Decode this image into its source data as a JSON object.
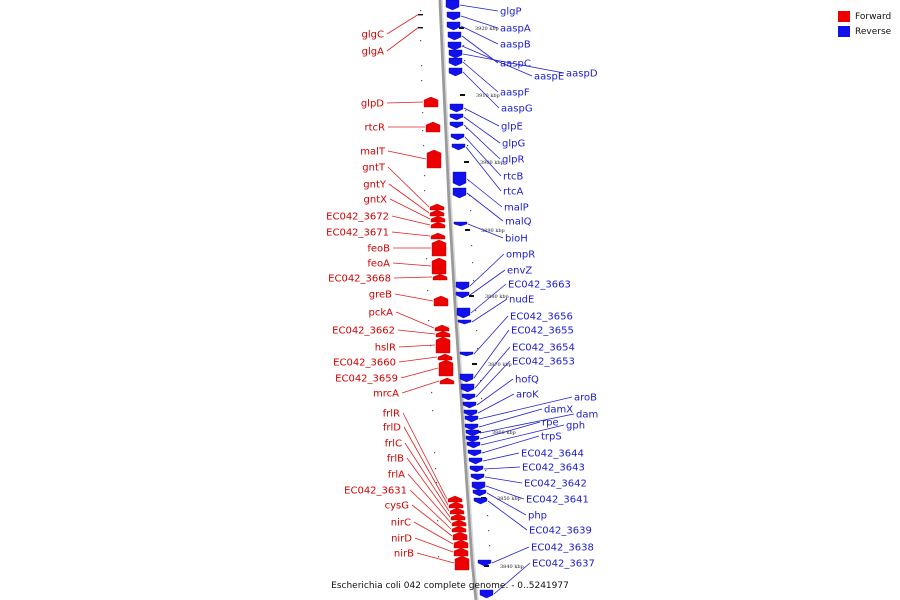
{
  "colors": {
    "forward": "#ee0000",
    "reverse": "#1111ee",
    "backbone": "#888888"
  },
  "legend": {
    "forward": "Forward",
    "reverse": "Reverse"
  },
  "caption": "Escherichia coli 042 complete genome. - 0..5241977",
  "ticks": [
    "3920 kbp",
    "3910 kbp",
    "3900 kbp",
    "3890 kbp",
    "3880 kbp",
    "3870 kbp",
    "3860 kbp",
    "3850 kbp",
    "3840 kbp"
  ],
  "forward_genes": [
    "glgC",
    "glgA",
    "glpD",
    "rtcR",
    "malT",
    "gntT",
    "gntY",
    "gntX",
    "EC042_3672",
    "EC042_3671",
    "feoB",
    "feoA",
    "EC042_3668",
    "greB",
    "pckA",
    "EC042_3662",
    "hslR",
    "EC042_3660",
    "EC042_3659",
    "mrcA",
    "frlR",
    "frlD",
    "frlC",
    "frlB",
    "frlA",
    "EC042_3631",
    "cysG",
    "nirC",
    "nirD",
    "nirB"
  ],
  "reverse_genes": [
    "glgP",
    "aaspA",
    "aaspB",
    "aaspC",
    "aaspE",
    "aaspD",
    "aaspF",
    "aaspG",
    "glpE",
    "glpG",
    "glpR",
    "rtcB",
    "rtcA",
    "malP",
    "malQ",
    "bioH",
    "ompR",
    "envZ",
    "EC042_3663",
    "nudE",
    "EC042_3656",
    "EC042_3655",
    "EC042_3654",
    "EC042_3653",
    "hofQ",
    "aroK",
    "aroB",
    "damX",
    "dam",
    "rpe",
    "gph",
    "trpS",
    "EC042_3644",
    "EC042_3643",
    "EC042_3642",
    "EC042_3641",
    "php",
    "EC042_3639",
    "EC042_3638",
    "EC042_3637"
  ]
}
